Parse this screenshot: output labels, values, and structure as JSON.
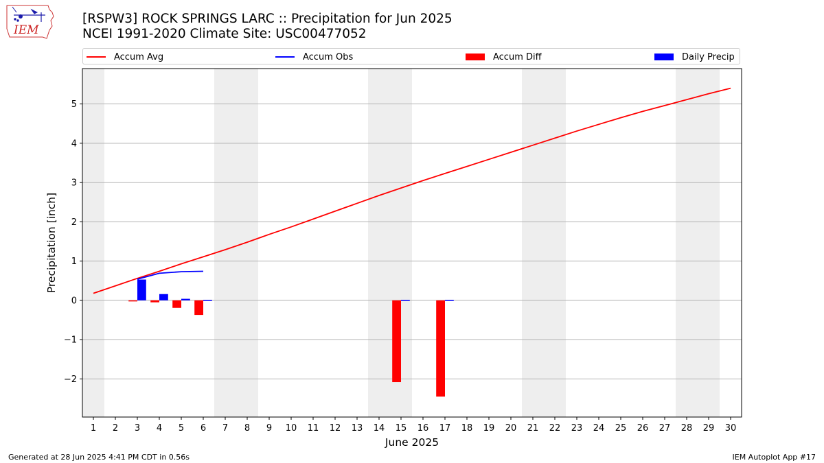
{
  "header": {
    "title": "[RSPW3] ROCK SPRINGS LARC :: Precipitation for Jun 2025",
    "subtitle": "NCEI 1991-2020 Climate Site: USC00477052",
    "logo_text": "IEM"
  },
  "legend": {
    "items": [
      {
        "label": "Accum Avg",
        "kind": "line",
        "color": "#ff0000"
      },
      {
        "label": "Accum Obs",
        "kind": "line",
        "color": "#0000ff"
      },
      {
        "label": "Accum Diff",
        "kind": "box",
        "color": "#ff0000"
      },
      {
        "label": "Daily Precip",
        "kind": "box",
        "color": "#0000ff"
      }
    ]
  },
  "footer": {
    "generated": "Generated at 28 Jun 2025 4:41 PM CDT in 0.56s",
    "app": "IEM Autoplot App #17"
  },
  "chart_data": {
    "type": "bar",
    "title": "[RSPW3] ROCK SPRINGS LARC :: Precipitation for Jun 2025",
    "xlabel": "June 2025",
    "ylabel": "Precipitation [inch]",
    "xlim": [
      0.5,
      30.5
    ],
    "ylim": [
      -2.97,
      5.9
    ],
    "xticks": [
      1,
      2,
      3,
      4,
      5,
      6,
      7,
      8,
      9,
      10,
      11,
      12,
      13,
      14,
      15,
      16,
      17,
      18,
      19,
      20,
      21,
      22,
      23,
      24,
      25,
      26,
      27,
      28,
      29,
      30
    ],
    "yticks": [
      -2,
      -1,
      0,
      1,
      2,
      3,
      4,
      5
    ],
    "ytick_labels": [
      "−2",
      "−1",
      "0",
      "1",
      "2",
      "3",
      "4",
      "5"
    ],
    "grid": "horizontal",
    "legend_placement": "top",
    "weekend_shading": [
      [
        0.5,
        1.5
      ],
      [
        6.5,
        8.5
      ],
      [
        13.5,
        15.5
      ],
      [
        20.5,
        22.5
      ],
      [
        27.5,
        29.5
      ]
    ],
    "accum_avg": {
      "name": "Accum Avg",
      "color": "#ff0000",
      "x": [
        1,
        2,
        3,
        4,
        5,
        6,
        7,
        8,
        9,
        10,
        11,
        12,
        13,
        14,
        15,
        16,
        17,
        18,
        19,
        20,
        21,
        22,
        23,
        24,
        25,
        26,
        27,
        28,
        29,
        30
      ],
      "values": [
        0.18,
        0.37,
        0.56,
        0.74,
        0.93,
        1.11,
        1.29,
        1.48,
        1.68,
        1.87,
        2.07,
        2.27,
        2.47,
        2.67,
        2.86,
        3.05,
        3.23,
        3.41,
        3.59,
        3.77,
        3.95,
        4.13,
        4.31,
        4.48,
        4.65,
        4.81,
        4.96,
        5.11,
        5.26,
        5.4
      ]
    },
    "accum_obs": {
      "name": "Accum Obs",
      "color": "#0000ff",
      "x": [
        3,
        4,
        5,
        6
      ],
      "values": [
        0.54,
        0.69,
        0.73,
        0.74
      ]
    },
    "accum_diff": {
      "name": "Accum Diff",
      "color": "#ff0000",
      "x": [
        3,
        4,
        5,
        6,
        15,
        17
      ],
      "values": [
        -0.02,
        -0.05,
        -0.19,
        -0.37,
        -2.08,
        -2.45
      ]
    },
    "daily_precip": {
      "name": "Daily Precip",
      "color": "#0000ff",
      "x": [
        3,
        4,
        5,
        6,
        15,
        17
      ],
      "values": [
        0.53,
        0.16,
        0.04,
        0.01,
        0.01,
        0.01
      ]
    }
  }
}
